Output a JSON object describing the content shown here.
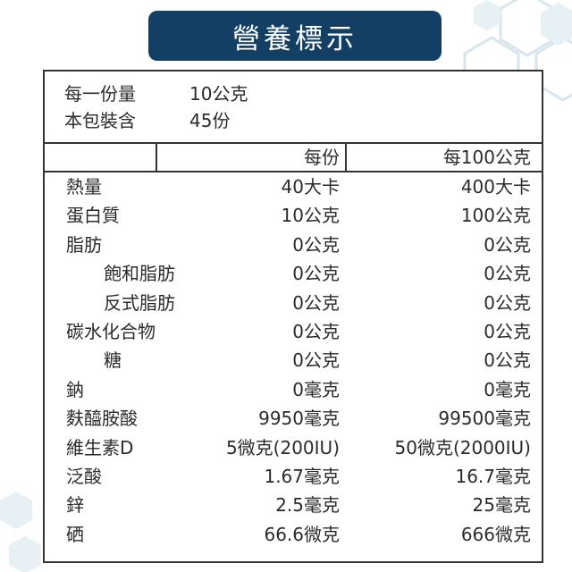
{
  "title": "營養標示",
  "serving": {
    "size_label": "每一份量",
    "size_value": "10公克",
    "count_label": "本包裝含",
    "count_value": "45份"
  },
  "columns": {
    "per_serving": "每份",
    "per_100": "每100公克"
  },
  "nutrients": [
    {
      "name": "熱量",
      "per_serving": "40大卡",
      "per_100": "400大卡",
      "indent": false
    },
    {
      "name": "蛋白質",
      "per_serving": "10公克",
      "per_100": "100公克",
      "indent": false
    },
    {
      "name": "脂肪",
      "per_serving": "0公克",
      "per_100": "0公克",
      "indent": false
    },
    {
      "name": "飽和脂肪",
      "per_serving": "0公克",
      "per_100": "0公克",
      "indent": true
    },
    {
      "name": "反式脂肪",
      "per_serving": "0公克",
      "per_100": "0公克",
      "indent": true
    },
    {
      "name": "碳水化合物",
      "per_serving": "0公克",
      "per_100": "0公克",
      "indent": false
    },
    {
      "name": "糖",
      "per_serving": "0公克",
      "per_100": "0公克",
      "indent": true
    },
    {
      "name": "鈉",
      "per_serving": "0毫克",
      "per_100": "0毫克",
      "indent": false
    },
    {
      "name": "麩醯胺酸",
      "per_serving": "9950毫克",
      "per_100": "99500毫克",
      "indent": false
    },
    {
      "name": "維生素D",
      "per_serving": "5微克(200IU)",
      "per_100": "50微克(2000IU)",
      "indent": false
    },
    {
      "name": "泛酸",
      "per_serving": "1.67毫克",
      "per_100": "16.7毫克",
      "indent": false
    },
    {
      "name": "鋅",
      "per_serving": "2.5毫克",
      "per_100": "25毫克",
      "indent": false
    },
    {
      "name": "硒",
      "per_serving": "66.6微克",
      "per_100": "666微克",
      "indent": false
    }
  ],
  "colors": {
    "badge": "#123f63",
    "hexagon_pattern": "#d6e6ef"
  }
}
